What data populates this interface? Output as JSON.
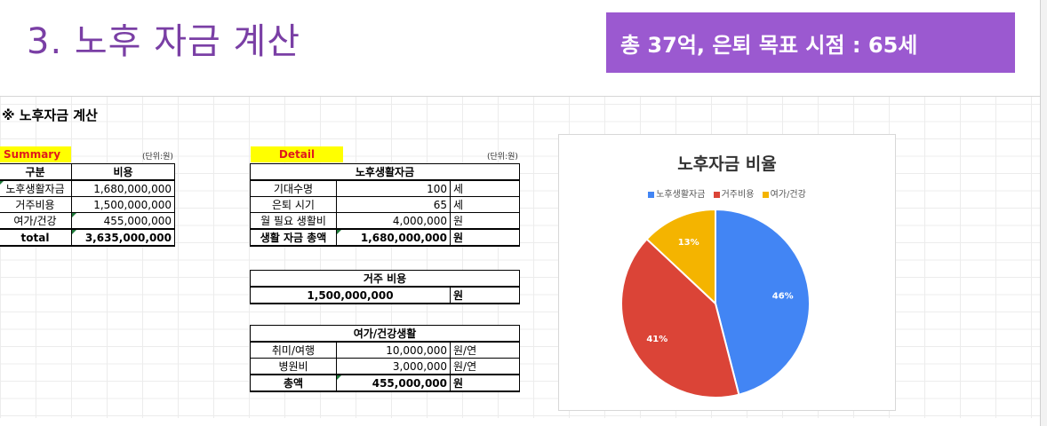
{
  "slide": {
    "title": "3. 노후 자금 계산",
    "highlight": "총 37억, 은퇴 목표 시점  : 65세"
  },
  "sheet": {
    "heading": "※ 노후자금 계산",
    "summary": {
      "tag": "Summary",
      "unit": "(단위:원)",
      "headers": [
        "구분",
        "비용"
      ],
      "rows": [
        {
          "label": "노후생활자금",
          "value": "1,680,000,000"
        },
        {
          "label": "거주비용",
          "value": "1,500,000,000"
        },
        {
          "label": "여가/건강",
          "value": "455,000,000"
        }
      ],
      "total": {
        "label": "total",
        "value": "3,635,000,000"
      }
    },
    "detail": {
      "tag": "Detail",
      "unit": "(단위:원)",
      "living": {
        "title": "노후생활자금",
        "rows": [
          {
            "label": "기대수명",
            "value": "100",
            "unit": "세"
          },
          {
            "label": "은퇴 시기",
            "value": "65",
            "unit": "세"
          },
          {
            "label": "월 필요 생활비",
            "value": "4,000,000",
            "unit": "원"
          }
        ],
        "total": {
          "label": "생활 자금 총액",
          "value": "1,680,000,000",
          "unit": "원"
        }
      },
      "housing": {
        "title": "거주 비용",
        "value": "1,500,000,000",
        "unit": "원"
      },
      "leisure": {
        "title": "여가/건강생활",
        "rows": [
          {
            "label": "취미/여행",
            "value": "10,000,000",
            "unit": "원/연"
          },
          {
            "label": "병원비",
            "value": "3,000,000",
            "unit": "원/연"
          }
        ],
        "total": {
          "label": "총액",
          "value": "455,000,000",
          "unit": "원"
        }
      }
    }
  },
  "chart_data": {
    "type": "pie",
    "title": "노후자금 비율",
    "categories": [
      "노후생활자금",
      "거주비용",
      "여가/건강"
    ],
    "values": [
      46,
      41,
      13
    ],
    "labels": [
      "46%",
      "41%",
      "13%"
    ],
    "colors": [
      "#4285f4",
      "#db4437",
      "#f4b400"
    ],
    "legend": "top"
  }
}
